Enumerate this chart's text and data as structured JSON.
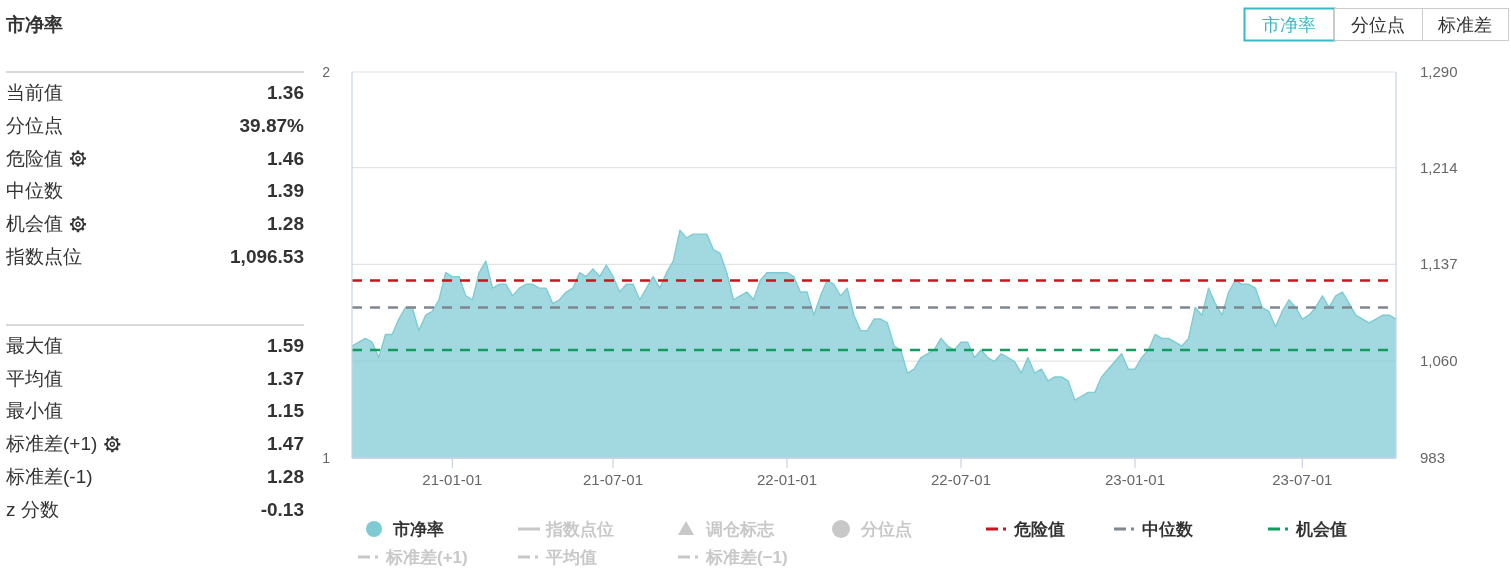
{
  "chart_data": [
    {
      "type": "other",
      "title": "市净率",
      "annotations": [
        "当前值",
        "1.36",
        "分位点",
        "39.87%",
        "危险值",
        "1.46",
        "中位数",
        "1.39",
        "机会值",
        "1.28",
        "指数点位",
        "1,096.53",
        "最大值",
        "1.59",
        "平均值",
        "1.37",
        "最小值",
        "1.15",
        "标准差(+1)",
        "1.47",
        "标准差(-1)",
        "1.28",
        "z 分数",
        "-0.13"
      ]
    },
    {
      "type": "area",
      "categories": [
        null,
        null,
        null,
        null,
        null,
        null,
        null,
        null,
        null,
        null,
        null,
        null,
        null,
        null,
        null,
        "21-01-01",
        null,
        null,
        null,
        null,
        null,
        null,
        null,
        null,
        null,
        null,
        null,
        null,
        null,
        null,
        null,
        null,
        null,
        null,
        null,
        null,
        null,
        null,
        null,
        "21-07-01",
        null,
        null,
        null,
        null,
        null,
        null,
        null,
        null,
        null,
        null,
        null,
        null,
        null,
        null,
        null,
        null,
        null,
        null,
        null,
        null,
        null,
        null,
        null,
        null,
        null,
        "22-01-01",
        null,
        null,
        null,
        null,
        null,
        null,
        null,
        null,
        null,
        null,
        null,
        null,
        null,
        null,
        null,
        null,
        null,
        null,
        null,
        null,
        null,
        null,
        null,
        null,
        null,
        "22-07-01",
        null,
        null,
        null,
        null,
        null,
        null,
        null,
        null,
        null,
        null,
        null,
        null,
        null,
        null,
        null,
        null,
        null,
        null,
        null,
        null,
        null,
        null,
        null,
        null,
        null,
        "23-01-01",
        null,
        null,
        null,
        null,
        null,
        null,
        null,
        null,
        null,
        null,
        null,
        null,
        null,
        null,
        null,
        null,
        null,
        null,
        null,
        null,
        null,
        null,
        null,
        null,
        "23-07-01",
        null,
        null,
        null,
        null,
        null,
        null,
        null,
        null,
        null,
        null,
        null,
        null,
        null,
        null
      ],
      "series": [
        {
          "name": "市净率",
          "color": "#7ecbd4",
          "values": [
            1.29,
            1.3,
            1.31,
            1.3,
            1.26,
            1.32,
            1.32,
            1.36,
            1.39,
            1.39,
            1.33,
            1.37,
            1.38,
            1.41,
            1.48,
            1.47,
            1.47,
            1.42,
            1.41,
            1.48,
            1.51,
            1.44,
            1.45,
            1.45,
            1.42,
            1.44,
            1.45,
            1.45,
            1.44,
            1.44,
            1.4,
            1.41,
            1.43,
            1.44,
            1.48,
            1.47,
            1.49,
            1.47,
            1.5,
            1.47,
            1.43,
            1.45,
            1.45,
            1.41,
            1.44,
            1.47,
            1.44,
            1.48,
            1.51,
            1.59,
            1.57,
            1.58,
            1.58,
            1.58,
            1.54,
            1.53,
            1.48,
            1.41,
            1.42,
            1.43,
            1.41,
            1.46,
            1.48,
            1.48,
            1.48,
            1.48,
            1.47,
            1.43,
            1.43,
            1.37,
            1.42,
            1.46,
            1.45,
            1.42,
            1.44,
            1.37,
            1.33,
            1.33,
            1.36,
            1.36,
            1.35,
            1.29,
            1.28,
            1.22,
            1.23,
            1.26,
            1.27,
            1.28,
            1.31,
            1.29,
            1.28,
            1.3,
            1.3,
            1.26,
            1.28,
            1.26,
            1.25,
            1.27,
            1.26,
            1.25,
            1.22,
            1.26,
            1.22,
            1.23,
            1.2,
            1.21,
            1.21,
            1.2,
            1.15,
            1.16,
            1.17,
            1.17,
            1.21,
            1.23,
            1.25,
            1.27,
            1.23,
            1.23,
            1.26,
            1.28,
            1.32,
            1.31,
            1.31,
            1.3,
            1.29,
            1.31,
            1.39,
            1.37,
            1.44,
            1.4,
            1.37,
            1.43,
            1.46,
            1.45,
            1.45,
            1.44,
            1.39,
            1.38,
            1.34,
            1.38,
            1.41,
            1.39,
            1.36,
            1.37,
            1.39,
            1.42,
            1.39,
            1.42,
            1.43,
            1.4,
            1.37,
            1.36,
            1.35,
            1.36,
            1.37,
            1.37,
            1.36
          ]
        }
      ],
      "ylim": [
        1,
        2
      ],
      "yticks": [
        1,
        2
      ],
      "y2lim": [
        983,
        1290
      ],
      "y2ticks": [
        983,
        {
          "value": 1060,
          "label": "1,060"
        },
        {
          "value": 1137,
          "label": "1,137"
        },
        {
          "value": 1214,
          "label": "1,214"
        },
        {
          "value": 1290,
          "label": "1,290"
        }
      ],
      "ref_lines": [
        {
          "axis": "y",
          "value": 1.46,
          "label": "危险值",
          "color": "#c4161c",
          "line_style": "dashed"
        },
        {
          "axis": "y",
          "value": 1.39,
          "label": "中位数",
          "color": "#7f8790",
          "line_style": "dashed"
        },
        {
          "axis": "y",
          "value": 1.28,
          "label": "机会值",
          "color": "#139c5c",
          "line_style": "dashed"
        }
      ],
      "grid": "y",
      "legend": "bottom",
      "annotations": [
        "指数点位",
        "调仓标志",
        "分位点",
        "标准差(+1)",
        "平均值",
        "标准差(−1)"
      ]
    },
    {
      "type": "other",
      "annotations": [
        "市净率",
        "分位点",
        "标准差"
      ]
    }
  ]
}
